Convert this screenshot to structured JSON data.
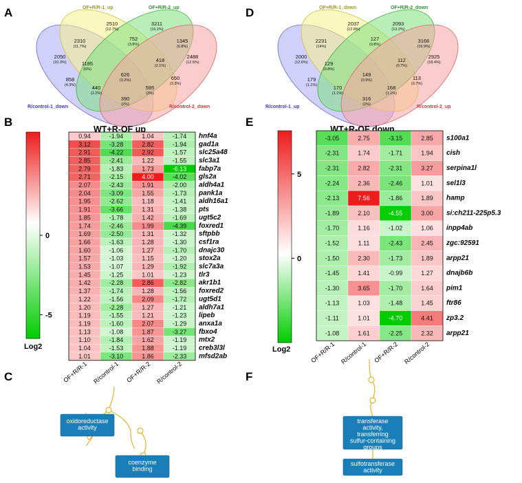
{
  "panels": {
    "A": "A",
    "B": "B",
    "C": "C",
    "D": "D",
    "E": "E",
    "F": "F"
  },
  "venn_up": {
    "sets": {
      "s1": "OF+R/R-1_up",
      "s2": "OF+R/R-2_up",
      "s3": "R/control-1_down",
      "s4": "R/control-2_down"
    },
    "regions": [
      {
        "n": "2510",
        "p": "(12.7%)"
      },
      {
        "n": "3211",
        "p": "(16.2%)"
      },
      {
        "n": "2310",
        "p": "(11.7%)"
      },
      {
        "n": "752",
        "p": "(3.8%)"
      },
      {
        "n": "1345",
        "p": "(6.8%)"
      },
      {
        "n": "2050",
        "p": "(10.3%)"
      },
      {
        "n": "2488",
        "p": "(12.5%)"
      },
      {
        "n": "1185",
        "p": "(6%)"
      },
      {
        "n": "418",
        "p": "(2.1%)"
      },
      {
        "n": "626",
        "p": "(3.2%)"
      },
      {
        "n": "858",
        "p": "(4.3%)"
      },
      {
        "n": "650",
        "p": "(3.3%)"
      },
      {
        "n": "440",
        "p": "(2.2%)"
      },
      {
        "n": "595",
        "p": "(3%)"
      },
      {
        "n": "390",
        "p": "(2%)"
      }
    ]
  },
  "venn_down": {
    "sets": {
      "s1": "OF+R/R-1_down",
      "s2": "OF+R/R-2_down",
      "s3": "R/control-1_up",
      "s4": "R/control-2_up"
    },
    "regions": [
      {
        "n": "2037",
        "p": "(12.8%)"
      },
      {
        "n": "2093",
        "p": "(13.2%)"
      },
      {
        "n": "2231",
        "p": "(14%)"
      },
      {
        "n": "127",
        "p": "(0.8%)"
      },
      {
        "n": "3166",
        "p": "(19.9%)"
      },
      {
        "n": "2000",
        "p": "(12.6%)"
      },
      {
        "n": "2925",
        "p": "(18.4%)"
      },
      {
        "n": "129",
        "p": "(0.8%)"
      },
      {
        "n": "112",
        "p": "(0.7%)"
      },
      {
        "n": "149",
        "p": "(0.9%)"
      },
      {
        "n": "179",
        "p": "(1.1%)"
      },
      {
        "n": "113",
        "p": "(0.7%)"
      },
      {
        "n": "170",
        "p": "(1.1%)"
      },
      {
        "n": "168",
        "p": "(1.1%)"
      },
      {
        "n": "316",
        "p": "(2%)"
      }
    ]
  },
  "colors": {
    "red": "#ee1c1c",
    "white": "#ffffff",
    "green": "#00cc00",
    "venn_yellow": "#f5f08a",
    "venn_green": "#7fe07f",
    "venn_blue": "#a9a9f5",
    "venn_red": "#f7a3a3"
  },
  "chart_data": [
    {
      "type": "heatmap",
      "title": "WT+R-OF up",
      "columns": [
        "OF+R/R-1",
        "R/control-1",
        "OF+R/R-2",
        "R/control-2"
      ],
      "colorbar": {
        "label": "Log2",
        "ticks": [
          "0",
          "-5"
        ],
        "min": -6.5,
        "max": 6.5
      },
      "rows": [
        "hnf4a",
        "gad1a",
        "slc25a48",
        "slc3a1",
        "fabp7a",
        "gls2a",
        "aldh4a1",
        "pank1a",
        "aldh16a1",
        "pts",
        "ugt5c2",
        "foxred1",
        "sftpbb",
        "csf1ra",
        "dnajc30",
        "stox2a",
        "slc7a3a",
        "tlr3",
        "akr1b1",
        "foxred2",
        "ugt5d1",
        "aldh7a1",
        "lipeb",
        "anxa1a",
        "fbxo4",
        "mtx2",
        "creb3l3l",
        "mfsd2ab"
      ],
      "values": [
        [
          0.94,
          -1.94,
          1.04,
          -1.74
        ],
        [
          3.12,
          -3.28,
          2.82,
          -1.94
        ],
        [
          2.91,
          -4.22,
          2.92,
          -1.57
        ],
        [
          2.85,
          -2.41,
          1.22,
          -1.55
        ],
        [
          2.79,
          -1.83,
          1.73,
          -6.13
        ],
        [
          2.71,
          -2.15,
          4.0,
          -4.02
        ],
        [
          2.07,
          -2.43,
          1.91,
          -2.0
        ],
        [
          2.04,
          -3.09,
          1.55,
          -1.73
        ],
        [
          1.95,
          -2.62,
          1.18,
          -1.41
        ],
        [
          1.91,
          -3.66,
          1.31,
          -1.38
        ],
        [
          1.85,
          -1.78,
          1.42,
          -1.69
        ],
        [
          1.74,
          -2.46,
          1.99,
          -4.39
        ],
        [
          1.69,
          -2.5,
          1.31,
          -1.32
        ],
        [
          1.66,
          -1.63,
          1.28,
          -1.3
        ],
        [
          1.6,
          -1.06,
          1.27,
          -1.7
        ],
        [
          1.57,
          -1.03,
          1.15,
          -1.2
        ],
        [
          1.53,
          -1.07,
          1.29,
          -1.92
        ],
        [
          1.45,
          -1.25,
          1.01,
          -1.23
        ],
        [
          1.42,
          -2.28,
          2.86,
          -2.82
        ],
        [
          1.37,
          -1.74,
          1.28,
          -1.56
        ],
        [
          1.22,
          -1.56,
          2.09,
          -1.72
        ],
        [
          1.2,
          -2.28,
          1.27,
          -1.21
        ],
        [
          1.19,
          -1.55,
          1.21,
          -1.23
        ],
        [
          1.19,
          -1.6,
          2.07,
          -1.29
        ],
        [
          1.13,
          -1.08,
          1.87,
          -3.27
        ],
        [
          1.1,
          -1.84,
          1.62,
          -1.19
        ],
        [
          1.04,
          -1.53,
          1.88,
          -1.19
        ],
        [
          1.01,
          -3.1,
          1.86,
          -2.33
        ]
      ],
      "value_labels": [
        [
          "0.94",
          "-1.94",
          "1.04",
          "-1.74"
        ],
        [
          "3.12",
          "-3.28",
          "2.82",
          "-1.94"
        ],
        [
          "2.91",
          "-4.22",
          "2.92",
          "-1.57"
        ],
        [
          "2.85",
          "-2.41",
          "1.22",
          "-1.55"
        ],
        [
          "2.79",
          "-1.83",
          "1.73",
          "-6.13"
        ],
        [
          "2.71",
          "-2.15",
          "4.00",
          "-4.02"
        ],
        [
          "2.07",
          "-2.43",
          "1.91",
          "-2.00"
        ],
        [
          "2.04",
          "-3.09",
          "1.55",
          "-1.73"
        ],
        [
          "1.95",
          "-2.62",
          "1.18",
          "-1.41"
        ],
        [
          "1.91",
          "-3.66",
          "1.31",
          "-1.38"
        ],
        [
          "1.85",
          "-1.78",
          "1.42",
          "-1.69"
        ],
        [
          "1.74",
          "-2.46",
          "1.99",
          "-4.39"
        ],
        [
          "1.69",
          "-2.50",
          "1.31",
          "-1.32"
        ],
        [
          "1.66",
          "-1.63",
          "1.28",
          "-1.30"
        ],
        [
          "1.60",
          "-1.06",
          "1.27",
          "-1.70"
        ],
        [
          "1.57",
          "-1.03",
          "1.15",
          "-1.20"
        ],
        [
          "1.53",
          "-1.07",
          "1.29",
          "-1.92"
        ],
        [
          "1.45",
          "-1.25",
          "1.01",
          "-1.23"
        ],
        [
          "1.42",
          "-2.28",
          "2.86",
          "-2.82"
        ],
        [
          "1.37",
          "-1.74",
          "1.28",
          "-1.56"
        ],
        [
          "1.22",
          "-1.56",
          "2.09",
          "-1.72"
        ],
        [
          "1.20",
          "-2.28",
          "1.27",
          "-1.21"
        ],
        [
          "1.19",
          "-1.55",
          "1.21",
          "-1.23"
        ],
        [
          "1.19",
          "-1.60",
          "2.07",
          "-1.29"
        ],
        [
          "1.13",
          "-1.08",
          "1.87",
          "-3.27"
        ],
        [
          "1.10",
          "-1.84",
          "1.62",
          "-1.19"
        ],
        [
          "1.04",
          "-1.53",
          "1.88",
          "-1.19"
        ],
        [
          "1.01",
          "-3.10",
          "1.86",
          "-2.33"
        ]
      ]
    },
    {
      "type": "heatmap",
      "title": "WT+R-OF down",
      "columns": [
        "OF+R/R-1",
        "R/control-1",
        "OF+R/R-2",
        "R/control-2"
      ],
      "colorbar": {
        "label": "Log2",
        "ticks": [
          "5",
          "0"
        ],
        "min": -5,
        "max": 7.56
      },
      "rows": [
        "s100a1",
        "cish",
        "serpina1l",
        "sel1l3",
        "hamp",
        "si:ch211-225p5.3",
        "inpp4ab",
        "zgc:92591",
        "arpp21",
        "dnajb6b",
        "pim1",
        "ftr86",
        "zp3.2",
        "arpp21"
      ],
      "values": [
        [
          -3.05,
          2.75,
          -3.15,
          2.85
        ],
        [
          -2.31,
          1.74,
          -1.71,
          1.94
        ],
        [
          -2.31,
          2.82,
          -2.31,
          3.27
        ],
        [
          -2.24,
          2.36,
          -2.46,
          1.01
        ],
        [
          -2.13,
          7.56,
          -1.86,
          1.89
        ],
        [
          -1.89,
          2.1,
          -4.55,
          3.0
        ],
        [
          -1.7,
          1.16,
          -1.02,
          1.06
        ],
        [
          -1.52,
          1.11,
          -2.43,
          2.45
        ],
        [
          -1.5,
          2.3,
          -1.73,
          1.89
        ],
        [
          -1.45,
          1.41,
          -0.99,
          1.27
        ],
        [
          -1.3,
          3.65,
          -1.7,
          1.64
        ],
        [
          -1.13,
          1.03,
          -1.48,
          1.45
        ],
        [
          -1.11,
          1.01,
          -4.7,
          4.41
        ],
        [
          -1.08,
          1.61,
          -2.25,
          2.32
        ]
      ],
      "value_labels": [
        [
          "-3.05",
          "2.75",
          "-3.15",
          "2.85"
        ],
        [
          "-2.31",
          "1.74",
          "-1.71",
          "1.94"
        ],
        [
          "-2.31",
          "2.82",
          "-2.31",
          "3.27"
        ],
        [
          "-2.24",
          "2.36",
          "-2.46",
          "1.01"
        ],
        [
          "-2.13",
          "7.56",
          "-1.86",
          "1.89"
        ],
        [
          "-1.89",
          "2.10",
          "-4.55",
          "3.00"
        ],
        [
          "-1.70",
          "1.16",
          "-1.02",
          "1.06"
        ],
        [
          "-1.52",
          "1.11",
          "-2.43",
          "2.45"
        ],
        [
          "-1.50",
          "2.30",
          "-1.73",
          "1.89"
        ],
        [
          "-1.45",
          "1.41",
          "-0.99",
          "1.27"
        ],
        [
          "-1.30",
          "3.65",
          "-1.70",
          "1.64"
        ],
        [
          "-1.13",
          "1.03",
          "-1.48",
          "1.45"
        ],
        [
          "-1.11",
          "1.01",
          "-4.70",
          "4.41"
        ],
        [
          "-1.08",
          "1.61",
          "-2.25",
          "2.32"
        ]
      ]
    }
  ],
  "go_C": {
    "box1": "oxidoreductase|activity",
    "box2": "coenzyme|binding"
  },
  "go_F": {
    "box1": "transferase|activity,|transferring|sulfur-containing|groups",
    "box2": "sulfotransferase|activity"
  }
}
